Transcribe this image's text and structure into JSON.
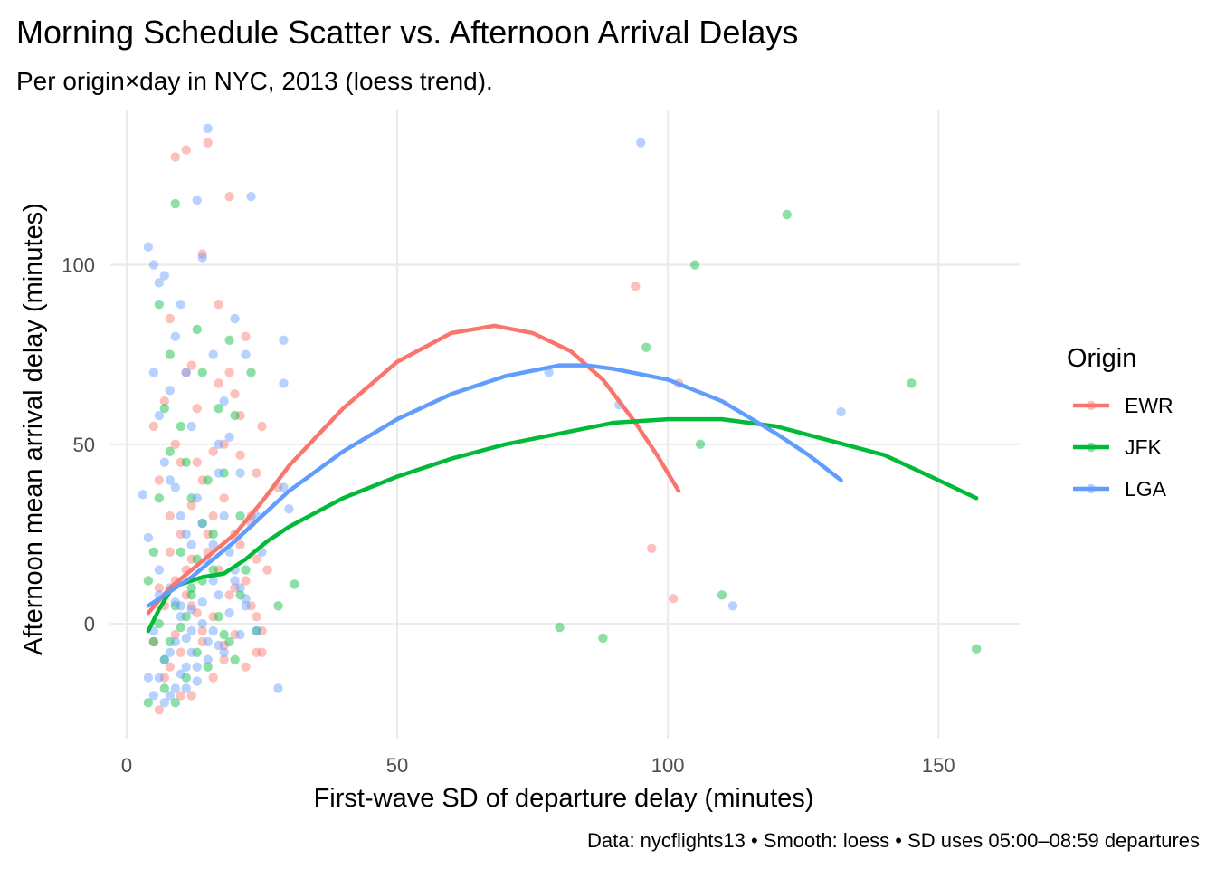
{
  "chart_data": {
    "type": "scatter",
    "title": "Morning Schedule Scatter vs. Afternoon Arrival Delays",
    "subtitle": "Per origin×day in NYC, 2013 (loess trend).",
    "xlabel": "First-wave SD of departure delay (minutes)",
    "ylabel": "Afternoon mean arrival delay (minutes)",
    "caption": "Data: nycflights13 • Smooth: loess • SD uses 05:00–08:59 departures",
    "xlim": [
      -3,
      165
    ],
    "ylim": [
      -32,
      143
    ],
    "x_ticks": [
      0,
      50,
      100,
      150
    ],
    "y_ticks": [
      0,
      50,
      100
    ],
    "grid": true,
    "legend": {
      "title": "Origin",
      "position": "right"
    },
    "series": [
      {
        "name": "EWR",
        "color": "#F8766D",
        "points": [
          [
            5,
            55
          ],
          [
            6,
            40
          ],
          [
            7,
            62
          ],
          [
            8,
            85
          ],
          [
            9,
            50
          ],
          [
            10,
            45
          ],
          [
            11,
            70
          ],
          [
            12,
            33
          ],
          [
            13,
            60
          ],
          [
            14,
            103
          ],
          [
            15,
            20
          ],
          [
            16,
            30
          ],
          [
            17,
            89
          ],
          [
            18,
            50
          ],
          [
            19,
            119
          ],
          [
            20,
            64
          ],
          [
            21,
            47
          ],
          [
            22,
            80
          ],
          [
            23,
            30
          ],
          [
            24,
            42
          ],
          [
            25,
            55
          ],
          [
            6,
            -24
          ],
          [
            8,
            -12
          ],
          [
            10,
            -8
          ],
          [
            12,
            -20
          ],
          [
            14,
            -5
          ],
          [
            16,
            -15
          ],
          [
            18,
            -10
          ],
          [
            20,
            -3
          ],
          [
            22,
            -12
          ],
          [
            24,
            -8
          ],
          [
            25,
            -2
          ],
          [
            9,
            130
          ],
          [
            11,
            132
          ],
          [
            15,
            134
          ],
          [
            17,
            67
          ],
          [
            19,
            70
          ],
          [
            21,
            58
          ],
          [
            23,
            28
          ],
          [
            24,
            18
          ],
          [
            26,
            15
          ],
          [
            28,
            38
          ],
          [
            7,
            5
          ],
          [
            9,
            12
          ],
          [
            11,
            8
          ],
          [
            13,
            3
          ],
          [
            15,
            25
          ],
          [
            17,
            15
          ],
          [
            19,
            8
          ],
          [
            21,
            22
          ],
          [
            5,
            -5
          ],
          [
            7,
            -15
          ],
          [
            8,
            20
          ],
          [
            12,
            18
          ],
          [
            14,
            40
          ],
          [
            16,
            48
          ],
          [
            18,
            35
          ],
          [
            20,
            25
          ],
          [
            22,
            12
          ],
          [
            23,
            5
          ],
          [
            6,
            10
          ],
          [
            10,
            25
          ],
          [
            12,
            5
          ],
          [
            14,
            -2
          ],
          [
            16,
            2
          ],
          [
            18,
            -6
          ],
          [
            20,
            10
          ],
          [
            24,
            2
          ],
          [
            25,
            -8
          ],
          [
            10,
            -20
          ],
          [
            12,
            72
          ],
          [
            13,
            45
          ],
          [
            11,
            15
          ],
          [
            9,
            -3
          ],
          [
            8,
            30
          ],
          [
            94,
            94
          ],
          [
            97,
            21
          ],
          [
            101,
            7
          ],
          [
            102,
            67
          ]
        ]
      },
      {
        "name": "JFK",
        "color": "#00BA38",
        "points": [
          [
            4,
            -22
          ],
          [
            5,
            -5
          ],
          [
            6,
            89
          ],
          [
            7,
            60
          ],
          [
            8,
            75
          ],
          [
            9,
            117
          ],
          [
            10,
            55
          ],
          [
            11,
            45
          ],
          [
            12,
            35
          ],
          [
            13,
            82
          ],
          [
            14,
            70
          ],
          [
            15,
            40
          ],
          [
            16,
            25
          ],
          [
            17,
            60
          ],
          [
            18,
            42
          ],
          [
            19,
            79
          ],
          [
            20,
            58
          ],
          [
            21,
            30
          ],
          [
            22,
            15
          ],
          [
            23,
            70
          ],
          [
            24,
            -2
          ],
          [
            28,
            5
          ],
          [
            31,
            11
          ],
          [
            5,
            20
          ],
          [
            7,
            -10
          ],
          [
            9,
            5
          ],
          [
            11,
            -15
          ],
          [
            13,
            -8
          ],
          [
            15,
            -12
          ],
          [
            17,
            2
          ],
          [
            19,
            -5
          ],
          [
            21,
            8
          ],
          [
            6,
            35
          ],
          [
            8,
            48
          ],
          [
            10,
            20
          ],
          [
            12,
            10
          ],
          [
            14,
            28
          ],
          [
            16,
            15
          ],
          [
            18,
            -3
          ],
          [
            20,
            -10
          ],
          [
            7,
            -18
          ],
          [
            9,
            -22
          ],
          [
            11,
            2
          ],
          [
            13,
            18
          ],
          [
            4,
            12
          ],
          [
            6,
            0
          ],
          [
            8,
            -5
          ],
          [
            10,
            -1
          ],
          [
            12,
            8
          ],
          [
            14,
            12
          ],
          [
            80,
            -1
          ],
          [
            88,
            -4
          ],
          [
            96,
            77
          ],
          [
            105,
            100
          ],
          [
            106,
            50
          ],
          [
            110,
            8
          ],
          [
            122,
            114
          ],
          [
            145,
            67
          ],
          [
            157,
            -7
          ]
        ]
      },
      {
        "name": "LGA",
        "color": "#619CFF",
        "points": [
          [
            4,
            105
          ],
          [
            5,
            100
          ],
          [
            6,
            95
          ],
          [
            7,
            97
          ],
          [
            8,
            65
          ],
          [
            9,
            80
          ],
          [
            10,
            89
          ],
          [
            11,
            70
          ],
          [
            12,
            55
          ],
          [
            13,
            118
          ],
          [
            14,
            102
          ],
          [
            15,
            138
          ],
          [
            16,
            75
          ],
          [
            17,
            50
          ],
          [
            18,
            62
          ],
          [
            19,
            52
          ],
          [
            20,
            85
          ],
          [
            21,
            42
          ],
          [
            22,
            75
          ],
          [
            23,
            119
          ],
          [
            24,
            30
          ],
          [
            25,
            20
          ],
          [
            28,
            -18
          ],
          [
            29,
            79
          ],
          [
            29,
            67
          ],
          [
            30,
            32
          ],
          [
            29,
            38
          ],
          [
            3,
            36
          ],
          [
            4,
            24
          ],
          [
            5,
            -2
          ],
          [
            6,
            -15
          ],
          [
            7,
            -10
          ],
          [
            8,
            -20
          ],
          [
            9,
            -5
          ],
          [
            10,
            5
          ],
          [
            11,
            -18
          ],
          [
            12,
            -8
          ],
          [
            13,
            -12
          ],
          [
            14,
            0
          ],
          [
            15,
            -5
          ],
          [
            16,
            -2
          ],
          [
            17,
            8
          ],
          [
            18,
            -8
          ],
          [
            19,
            3
          ],
          [
            20,
            12
          ],
          [
            21,
            -3
          ],
          [
            22,
            7
          ],
          [
            24,
            -2
          ],
          [
            5,
            70
          ],
          [
            6,
            58
          ],
          [
            7,
            45
          ],
          [
            8,
            40
          ],
          [
            9,
            38
          ],
          [
            10,
            30
          ],
          [
            11,
            25
          ],
          [
            12,
            22
          ],
          [
            13,
            35
          ],
          [
            14,
            28
          ],
          [
            15,
            18
          ],
          [
            16,
            12
          ],
          [
            17,
            42
          ],
          [
            18,
            30
          ],
          [
            19,
            20
          ],
          [
            20,
            15
          ],
          [
            21,
            10
          ],
          [
            22,
            5
          ],
          [
            6,
            8
          ],
          [
            8,
            10
          ],
          [
            10,
            2
          ],
          [
            12,
            -2
          ],
          [
            4,
            -15
          ],
          [
            5,
            -20
          ],
          [
            7,
            -22
          ],
          [
            9,
            -18
          ],
          [
            11,
            -12
          ],
          [
            13,
            -16
          ],
          [
            15,
            -10
          ],
          [
            17,
            -6
          ],
          [
            6,
            15
          ],
          [
            8,
            -8
          ],
          [
            10,
            -14
          ],
          [
            12,
            4
          ],
          [
            14,
            6
          ],
          [
            16,
            22
          ],
          [
            9,
            6
          ],
          [
            11,
            -4
          ],
          [
            78,
            70
          ],
          [
            91,
            61
          ],
          [
            95,
            134
          ],
          [
            112,
            5
          ],
          [
            132,
            59
          ]
        ]
      }
    ],
    "trend_lines": [
      {
        "name": "EWR",
        "color": "#F8766D",
        "points": [
          [
            4,
            3
          ],
          [
            8,
            10
          ],
          [
            12,
            15
          ],
          [
            16,
            20
          ],
          [
            20,
            25
          ],
          [
            25,
            34
          ],
          [
            30,
            44
          ],
          [
            40,
            60
          ],
          [
            50,
            73
          ],
          [
            60,
            81
          ],
          [
            68,
            83
          ],
          [
            75,
            81
          ],
          [
            82,
            76
          ],
          [
            88,
            68
          ],
          [
            94,
            56
          ],
          [
            98,
            47
          ],
          [
            102,
            37
          ]
        ]
      },
      {
        "name": "JFK",
        "color": "#00BA38",
        "points": [
          [
            4,
            -2
          ],
          [
            6,
            4
          ],
          [
            8,
            9
          ],
          [
            10,
            11
          ],
          [
            12,
            12
          ],
          [
            14,
            13
          ],
          [
            18,
            14
          ],
          [
            22,
            18
          ],
          [
            26,
            23
          ],
          [
            30,
            27
          ],
          [
            40,
            35
          ],
          [
            50,
            41
          ],
          [
            60,
            46
          ],
          [
            70,
            50
          ],
          [
            80,
            53
          ],
          [
            90,
            56
          ],
          [
            100,
            57
          ],
          [
            110,
            57
          ],
          [
            120,
            55
          ],
          [
            130,
            51
          ],
          [
            140,
            47
          ],
          [
            150,
            40
          ],
          [
            157,
            35
          ]
        ]
      },
      {
        "name": "LGA",
        "color": "#619CFF",
        "points": [
          [
            4,
            5
          ],
          [
            8,
            9
          ],
          [
            12,
            13
          ],
          [
            16,
            18
          ],
          [
            20,
            23
          ],
          [
            25,
            30
          ],
          [
            30,
            37
          ],
          [
            40,
            48
          ],
          [
            50,
            57
          ],
          [
            60,
            64
          ],
          [
            70,
            69
          ],
          [
            80,
            72
          ],
          [
            85,
            72
          ],
          [
            90,
            71
          ],
          [
            100,
            68
          ],
          [
            110,
            62
          ],
          [
            120,
            53
          ],
          [
            126,
            47
          ],
          [
            132,
            40
          ]
        ]
      }
    ]
  }
}
